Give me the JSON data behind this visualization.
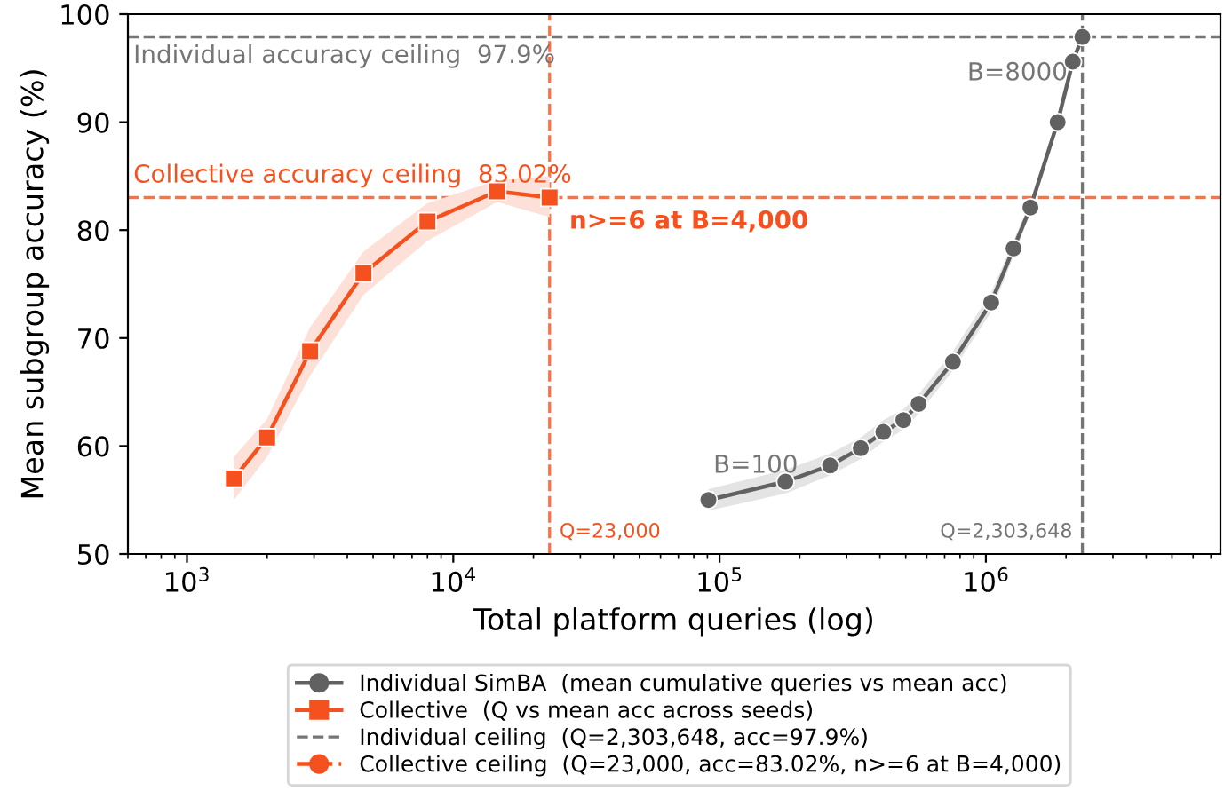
{
  "chart_data": {
    "type": "line",
    "xlabel": "Total platform queries (log)",
    "ylabel": "Mean subgroup accuracy (%)",
    "log": "x",
    "xlim": [
      600,
      7600000
    ],
    "ylim": [
      50,
      100
    ],
    "xticks": [
      {
        "value": 1000,
        "label": "10$^{3}$"
      },
      {
        "value": 10000,
        "label": "10$^{4}$"
      },
      {
        "value": 100000,
        "label": "10$^{5}$"
      },
      {
        "value": 1000000,
        "label": "10$^{6}$"
      }
    ],
    "yticks": [
      50,
      60,
      70,
      80,
      90,
      100
    ],
    "grid": false,
    "legend": "bottom",
    "series": [
      {
        "name": "Individual SimBA  (mean cumulative queries vs mean acc)",
        "color": "#616161",
        "marker": "circle",
        "line_style": "solid",
        "x": [
          90800,
          176600,
          260000,
          339000,
          412000,
          490000,
          559000,
          752000,
          1047000,
          1270000,
          1470000,
          1860000,
          2120000,
          2303648
        ],
        "values": [
          55.0,
          56.7,
          58.2,
          59.8,
          61.3,
          62.4,
          63.9,
          67.8,
          73.3,
          78.3,
          82.1,
          90.0,
          95.6,
          97.9
        ],
        "lower": [
          54.0,
          55.6,
          57.3,
          58.8,
          60.4,
          61.5,
          63.0,
          67.0,
          72.4,
          77.6,
          81.5,
          89.5,
          95.2,
          97.6
        ],
        "upper": [
          56.0,
          57.8,
          59.3,
          60.8,
          62.4,
          63.4,
          64.8,
          68.8,
          74.2,
          79.0,
          82.7,
          90.5,
          96.0,
          98.2
        ]
      },
      {
        "name": "Collective  (Q vs mean acc across seeds)",
        "color": "#f4511e",
        "marker": "square",
        "line_style": "solid",
        "x": [
          1500,
          2000,
          2900,
          4600,
          8000,
          14600,
          23000
        ],
        "values": [
          57.0,
          60.8,
          68.8,
          76.0,
          80.8,
          83.6,
          83.02
        ],
        "lower": [
          55.0,
          59.0,
          66.5,
          74.0,
          79.0,
          82.6,
          81.2
        ],
        "upper": [
          59.0,
          62.5,
          71.0,
          78.0,
          82.5,
          84.6,
          85.0
        ]
      },
      {
        "name": "Collective ceiling  (Q=23,000, acc=83.02%, n>=6 at B=4,000)",
        "color": "#f4511e",
        "marker": "circle",
        "line_style": "dashed",
        "x": [
          null
        ],
        "values": [
          null
        ]
      }
    ],
    "ref_lines": [
      {
        "axis": "y",
        "value": 97.9,
        "label": "Individual ceiling  (Q=2,303,648, acc=97.9%)",
        "color": "#757575",
        "line_style": "dashed"
      },
      {
        "axis": "x",
        "value": 2303648,
        "color": "#757575",
        "line_style": "dashed"
      },
      {
        "axis": "y",
        "value": 83.02,
        "color": "#ff7043",
        "line_style": "dashed"
      },
      {
        "axis": "x",
        "value": 23000,
        "color": "#ff7043",
        "line_style": "dashed"
      }
    ],
    "annotations": [
      {
        "text": "Individual accuracy ceiling  97.9%",
        "y": 97.9
      },
      {
        "text": "Collective accuracy ceiling  83.02%",
        "y": 83.02
      },
      {
        "text": "n>=6 at B=4,000",
        "x": 23000,
        "y": 83.02
      },
      {
        "text": "Q=23,000",
        "x": 23000,
        "y": 50
      },
      {
        "text": "Q=2,303,648",
        "x": 2303648,
        "y": 50
      },
      {
        "text": "B=100",
        "x": 90800,
        "y": 55.0
      },
      {
        "text": "B=8000",
        "x": 2303648,
        "y": 97.9
      }
    ]
  }
}
